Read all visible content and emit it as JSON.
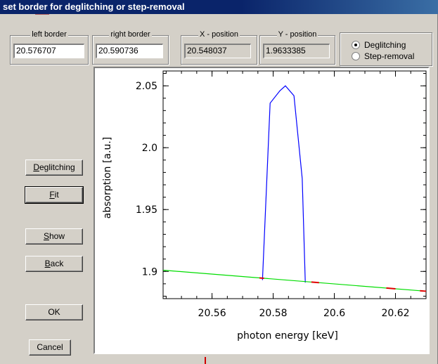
{
  "window": {
    "title": "set border for deglitching or step-removal"
  },
  "fields": {
    "left_border": {
      "label": "left border",
      "value": "20.576707"
    },
    "right_border": {
      "label": "right border",
      "value": "20.590736"
    },
    "x_position": {
      "label": "X - position",
      "value": "20.548037"
    },
    "y_position": {
      "label": "Y - position",
      "value": "1.9633385"
    }
  },
  "mode": {
    "options": [
      "Deglitching",
      "Step-removal"
    ],
    "selected": "Deglitching"
  },
  "buttons": {
    "deglitching": {
      "label": "Deglitching",
      "mnemonic": "D",
      "rest": "eglitching"
    },
    "fit": {
      "label": "Fit",
      "mnemonic": "F",
      "rest": "it"
    },
    "show": {
      "label": "Show",
      "mnemonic": "S",
      "rest": "how"
    },
    "back": {
      "label": "Back",
      "mnemonic": "B",
      "rest": "ack"
    },
    "ok": {
      "label": "OK"
    },
    "cancel": {
      "label": "Cancel"
    }
  },
  "chart_data": {
    "type": "line",
    "xlabel": "photon energy [keV]",
    "ylabel": "absorption [a.u.]",
    "xlim": [
      20.544,
      20.63
    ],
    "ylim": [
      1.878,
      2.062
    ],
    "xticks": [
      20.56,
      20.58,
      20.6,
      20.62
    ],
    "xtick_labels": [
      "20.56",
      "20.58",
      "20.6",
      "20.62"
    ],
    "yticks": [
      1.9,
      1.95,
      2.0,
      2.05
    ],
    "ytick_labels": [
      "1.9",
      "1.95",
      "2.0",
      "2.05"
    ],
    "grid": false,
    "series": [
      {
        "color": "#0000ff",
        "x": [
          20.5765,
          20.579,
          20.5822,
          20.584,
          20.5868,
          20.5895,
          20.5905
        ],
        "y": [
          1.893,
          2.036,
          2.046,
          2.05,
          2.042,
          1.975,
          1.891
        ]
      },
      {
        "color": "#00dd00",
        "x": [
          20.544,
          20.63
        ],
        "y": [
          1.901,
          1.884
        ]
      },
      {
        "color": "#e00000",
        "segments": [
          [
            20.5755,
            20.577
          ],
          [
            20.5925,
            20.595
          ],
          [
            20.617,
            20.62
          ],
          [
            20.628,
            20.63
          ]
        ]
      }
    ]
  }
}
